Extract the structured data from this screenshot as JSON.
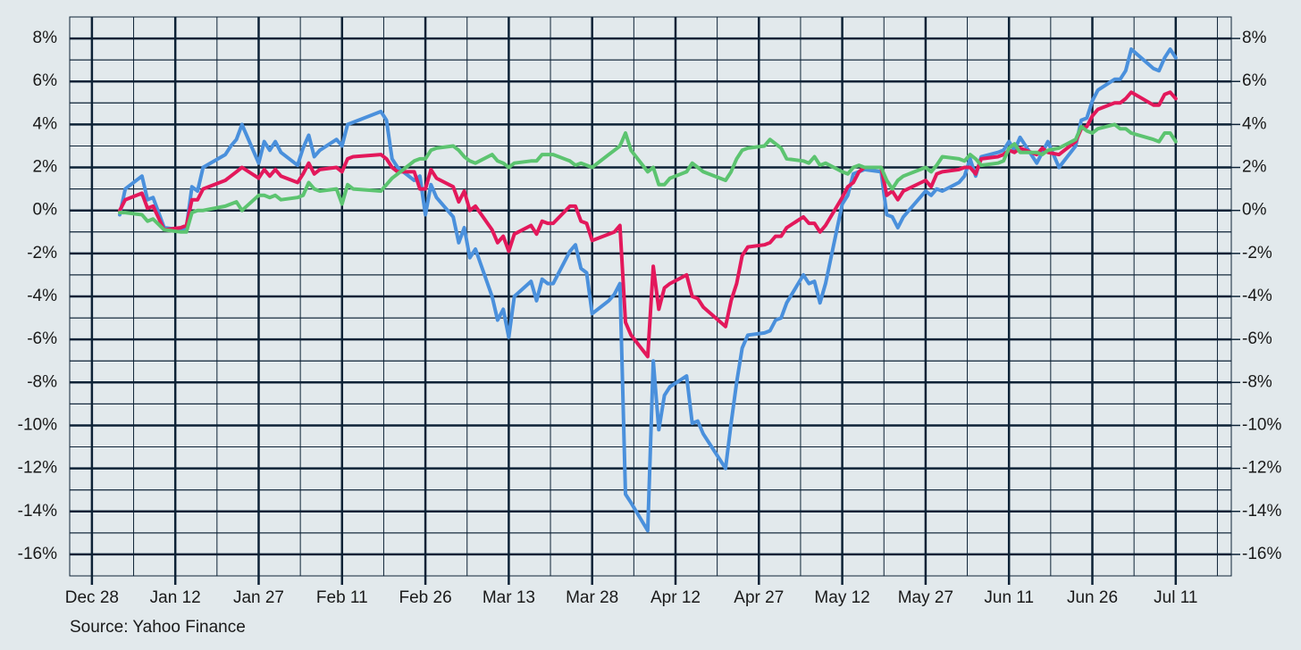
{
  "chart_data": {
    "type": "line",
    "source": "Source: Yahoo Finance",
    "x": [
      "Jan 2",
      "Jan 3",
      "Jan 6",
      "Jan 7",
      "Jan 8",
      "Jan 10",
      "Jan 13",
      "Jan 14",
      "Jan 15",
      "Jan 16",
      "Jan 17",
      "Jan 21",
      "Jan 22",
      "Jan 23",
      "Jan 24",
      "Jan 27",
      "Jan 28",
      "Jan 29",
      "Jan 30",
      "Jan 31",
      "Feb 3",
      "Feb 4",
      "Feb 5",
      "Feb 6",
      "Feb 7",
      "Feb 10",
      "Feb 11",
      "Feb 12",
      "Feb 13",
      "Feb 18",
      "Feb 19",
      "Feb 20",
      "Feb 21",
      "Feb 24",
      "Feb 25",
      "Feb 26",
      "Feb 27",
      "Feb 28",
      "Mar 3",
      "Mar 4",
      "Mar 5",
      "Mar 6",
      "Mar 7",
      "Mar 10",
      "Mar 11",
      "Mar 12",
      "Mar 13",
      "Mar 14",
      "Mar 17",
      "Mar 18",
      "Mar 19",
      "Mar 20",
      "Mar 21",
      "Mar 24",
      "Mar 25",
      "Mar 26",
      "Mar 27",
      "Mar 28",
      "Mar 31",
      "Apr 1",
      "Apr 2",
      "Apr 3",
      "Apr 4",
      "Apr 7",
      "Apr 8",
      "Apr 9",
      "Apr 10",
      "Apr 11",
      "Apr 14",
      "Apr 15",
      "Apr 16",
      "Apr 17",
      "Apr 21",
      "Apr 22",
      "Apr 23",
      "Apr 24",
      "Apr 25",
      "Apr 28",
      "Apr 29",
      "Apr 30",
      "May 1",
      "May 2",
      "May 5",
      "May 6",
      "May 7",
      "May 8",
      "May 9",
      "May 12",
      "May 13",
      "May 14",
      "May 15",
      "May 16",
      "May 19",
      "May 20",
      "May 21",
      "May 22",
      "May 23",
      "May 27",
      "May 28",
      "May 29",
      "May 30",
      "Jun 2",
      "Jun 3",
      "Jun 4",
      "Jun 5",
      "Jun 6",
      "Jun 9",
      "Jun 10",
      "Jun 11",
      "Jun 12",
      "Jun 13",
      "Jun 16",
      "Jun 17",
      "Jun 18",
      "Jun 20",
      "Jun 23",
      "Jun 24",
      "Jun 25",
      "Jun 26",
      "Jun 27",
      "Jun 30",
      "Jul 1",
      "Jul 2",
      "Jul 3",
      "Jul 7",
      "Jul 8",
      "Jul 9",
      "Jul 10",
      "Jul 11"
    ],
    "series": [
      {
        "color": "#4a90dc",
        "values": [
          -0.2,
          1.0,
          1.6,
          0.5,
          0.6,
          -0.8,
          -0.9,
          -0.8,
          1.1,
          0.9,
          2.0,
          2.6,
          3.0,
          3.3,
          4.0,
          2.2,
          3.2,
          2.8,
          3.2,
          2.7,
          2.1,
          2.9,
          3.5,
          2.5,
          2.8,
          3.3,
          3.0,
          4.0,
          4.1,
          4.6,
          4.2,
          2.4,
          2.0,
          1.4,
          1.6,
          -0.2,
          1.2,
          0.6,
          -0.3,
          -1.5,
          -0.8,
          -2.2,
          -1.8,
          -4.0,
          -5.1,
          -4.6,
          -5.9,
          -4.0,
          -3.3,
          -4.2,
          -3.2,
          -3.4,
          -3.4,
          -1.9,
          -1.6,
          -2.7,
          -2.9,
          -4.8,
          -4.2,
          -3.9,
          -3.4,
          -13.2,
          -13.6,
          -14.9,
          -7.0,
          -10.2,
          -8.6,
          -8.2,
          -7.7,
          -9.9,
          -9.8,
          -10.4,
          -12.0,
          -9.9,
          -8.0,
          -6.4,
          -5.8,
          -5.7,
          -5.6,
          -5.1,
          -5.0,
          -4.3,
          -3.0,
          -3.4,
          -3.3,
          -4.3,
          -3.4,
          0.3,
          0.7,
          1.7,
          1.8,
          1.9,
          1.8,
          -0.2,
          -0.3,
          -0.8,
          -0.3,
          0.9,
          0.7,
          1.0,
          0.9,
          1.3,
          1.6,
          2.4,
          1.6,
          2.5,
          2.7,
          2.8,
          3.2,
          2.8,
          3.4,
          2.2,
          2.7,
          3.2,
          2.0,
          3.0,
          4.2,
          4.3,
          5.1,
          5.6,
          6.1,
          6.1,
          6.5,
          7.5,
          6.6,
          6.5,
          7.1,
          7.5,
          7.1
        ]
      },
      {
        "color": "#e3185b",
        "values": [
          0.0,
          0.5,
          0.8,
          0.1,
          0.2,
          -0.9,
          -0.8,
          -0.7,
          0.5,
          0.5,
          1.0,
          1.4,
          1.6,
          1.8,
          2.0,
          1.5,
          1.9,
          1.6,
          1.9,
          1.6,
          1.3,
          1.7,
          2.2,
          1.7,
          1.9,
          2.0,
          1.8,
          2.4,
          2.5,
          2.6,
          2.4,
          2.0,
          1.8,
          1.8,
          1.0,
          1.0,
          1.9,
          1.5,
          1.1,
          0.4,
          0.9,
          0.0,
          0.2,
          -0.9,
          -1.5,
          -1.2,
          -1.9,
          -1.1,
          -0.7,
          -1.1,
          -0.5,
          -0.6,
          -0.6,
          0.2,
          0.2,
          -0.5,
          -0.6,
          -1.4,
          -1.1,
          -1.0,
          -0.7,
          -5.2,
          -5.8,
          -6.8,
          -2.6,
          -4.6,
          -3.6,
          -3.4,
          -3.0,
          -4.0,
          -4.1,
          -4.5,
          -5.4,
          -4.2,
          -3.4,
          -2.1,
          -1.7,
          -1.6,
          -1.5,
          -1.2,
          -1.2,
          -0.8,
          -0.3,
          -0.6,
          -0.6,
          -1.0,
          -0.7,
          0.6,
          1.1,
          1.3,
          1.8,
          2.0,
          2.0,
          0.7,
          0.9,
          0.5,
          0.9,
          1.4,
          1.1,
          1.7,
          1.8,
          1.9,
          2.0,
          2.0,
          1.7,
          2.4,
          2.5,
          2.6,
          2.8,
          2.7,
          2.9,
          2.6,
          2.9,
          2.7,
          2.6,
          3.2,
          3.8,
          3.9,
          4.4,
          4.7,
          5.0,
          5.0,
          5.2,
          5.5,
          4.9,
          4.9,
          5.4,
          5.5,
          5.2
        ]
      },
      {
        "color": "#5cc470",
        "values": [
          -0.1,
          -0.1,
          -0.2,
          -0.5,
          -0.4,
          -0.9,
          -1.0,
          -1.0,
          -0.1,
          0.0,
          0.0,
          0.2,
          0.3,
          0.4,
          0.0,
          0.7,
          0.7,
          0.6,
          0.7,
          0.5,
          0.6,
          0.7,
          1.3,
          1.0,
          0.9,
          1.0,
          0.3,
          1.2,
          1.0,
          0.9,
          1.2,
          1.5,
          1.7,
          2.3,
          2.4,
          2.4,
          2.8,
          2.9,
          3.0,
          2.8,
          2.5,
          2.3,
          2.2,
          2.6,
          2.3,
          2.2,
          2.0,
          2.2,
          2.3,
          2.3,
          2.6,
          2.6,
          2.6,
          2.3,
          2.1,
          2.2,
          2.1,
          2.0,
          2.6,
          2.8,
          3.0,
          3.6,
          2.8,
          1.8,
          2.0,
          1.2,
          1.2,
          1.5,
          1.8,
          2.2,
          2.0,
          1.8,
          1.4,
          1.8,
          2.4,
          2.8,
          2.9,
          3.0,
          3.3,
          3.1,
          2.9,
          2.4,
          2.3,
          2.2,
          2.5,
          2.1,
          2.2,
          1.8,
          1.7,
          2.0,
          2.1,
          2.0,
          2.0,
          1.4,
          1.0,
          1.4,
          1.6,
          2.0,
          1.8,
          2.1,
          2.5,
          2.4,
          2.3,
          2.6,
          2.4,
          2.1,
          2.2,
          2.3,
          2.9,
          3.1,
          2.7,
          2.7,
          2.6,
          2.8,
          2.9,
          3.3,
          3.9,
          3.7,
          3.6,
          3.8,
          4.0,
          3.8,
          3.8,
          3.6,
          3.3,
          3.2,
          3.6,
          3.6,
          3.2
        ]
      }
    ],
    "xlim": [
      "Dec 24",
      "Jul 21"
    ],
    "xticks": [
      "Dec 28",
      "Jan 12",
      "Jan 27",
      "Feb 11",
      "Feb 26",
      "Mar 13",
      "Mar 28",
      "Apr 12",
      "Apr 27",
      "May 12",
      "May 27",
      "Jun 11",
      "Jun 26",
      "Jul 11"
    ],
    "ylim": [
      -17,
      9
    ],
    "yticks": [
      {
        "value": -16,
        "label": "-16%"
      },
      {
        "value": -14,
        "label": "-14%"
      },
      {
        "value": -12,
        "label": "-12%"
      },
      {
        "value": -10,
        "label": "-10%"
      },
      {
        "value": -8,
        "label": "-8%"
      },
      {
        "value": -6,
        "label": "-6%"
      },
      {
        "value": -4,
        "label": "-4%"
      },
      {
        "value": -2,
        "label": "-2%"
      },
      {
        "value": 0,
        "label": "0%"
      },
      {
        "value": 2,
        "label": "2%"
      },
      {
        "value": 4,
        "label": "4%"
      },
      {
        "value": 6,
        "label": "6%"
      },
      {
        "value": 8,
        "label": "8%"
      }
    ],
    "y2lim": [
      -17,
      9
    ],
    "y2ticks": [
      {
        "value": -16,
        "label": "-16%"
      },
      {
        "value": -14,
        "label": "-14%"
      },
      {
        "value": -12,
        "label": "-12%"
      },
      {
        "value": -10,
        "label": "-10%"
      },
      {
        "value": -8,
        "label": "-8%"
      },
      {
        "value": -6,
        "label": "-6%"
      },
      {
        "value": -4,
        "label": "-4%"
      },
      {
        "value": -2,
        "label": "-2%"
      },
      {
        "value": 0,
        "label": "0%"
      },
      {
        "value": 2,
        "label": "2%"
      },
      {
        "value": 4,
        "label": "4%"
      },
      {
        "value": 6,
        "label": "6%"
      },
      {
        "value": 8,
        "label": "8%"
      }
    ],
    "grid": true
  }
}
